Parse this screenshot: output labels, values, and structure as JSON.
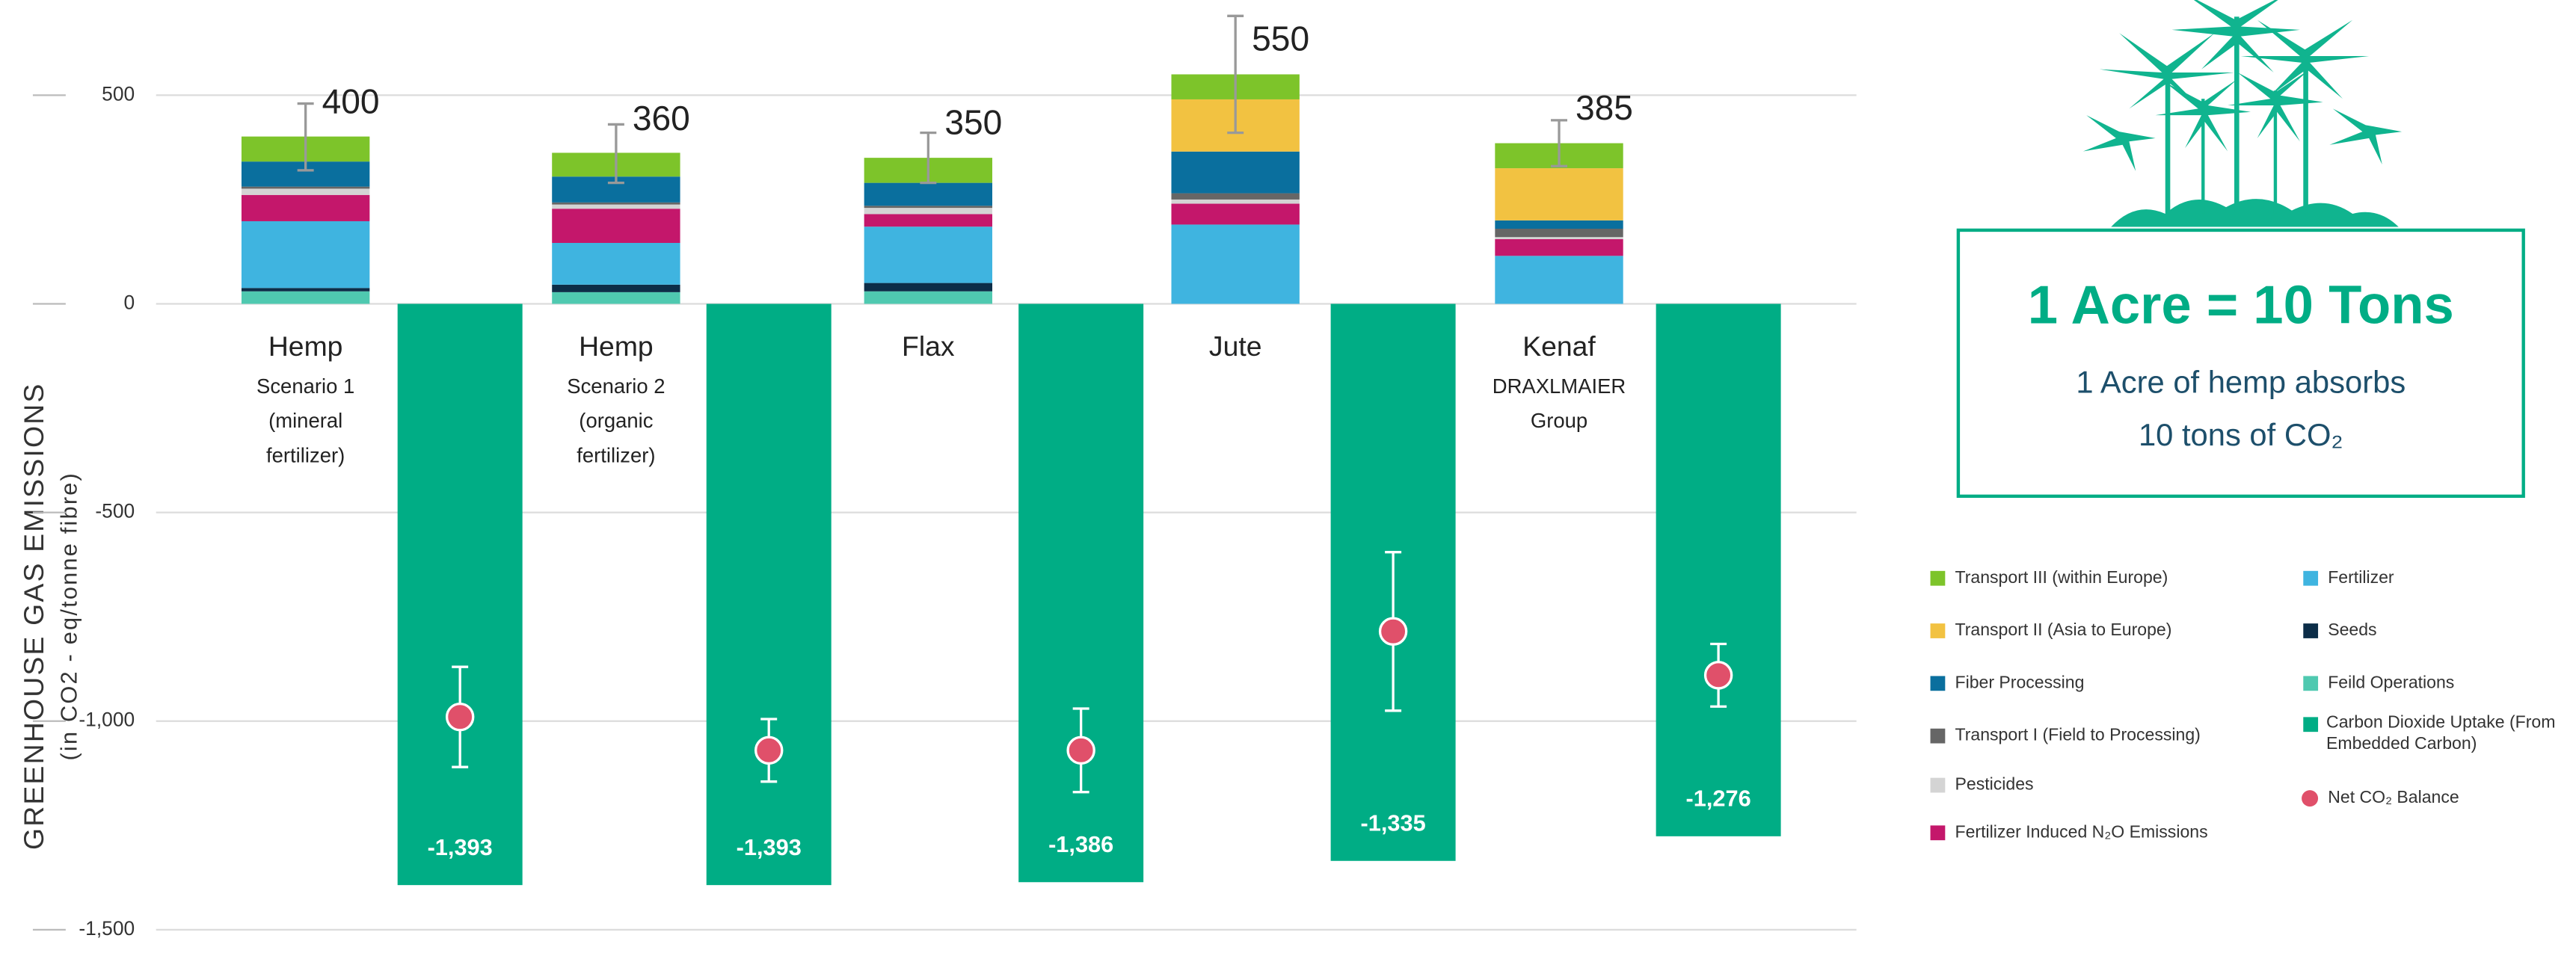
{
  "chart_data": {
    "type": "stacked_bar",
    "y_axis_title": "GREENHOUSE GAS EMISSIONS",
    "y_axis_subtitle": "(in CO2 - eq/tonne fibre)",
    "categories": [
      "Hemp",
      "Hemp",
      "Flax",
      "Jute",
      "Kenaf"
    ],
    "category_notes": [
      [
        "Scenario 1",
        "(mineral",
        "fertilizer)"
      ],
      [
        "Scenario 2",
        "(organic",
        "fertilizer)"
      ],
      [],
      [],
      [
        "DRAXLMAIER",
        "Group"
      ]
    ],
    "ylim": [
      -1500,
      700
    ],
    "yticks": [
      {
        "value": -1500,
        "label": "-1,500"
      },
      {
        "value": -1000,
        "label": "-1,000"
      },
      -500,
      0,
      500
    ],
    "grid": true,
    "series": [
      {
        "name": "Transport III (within Europe)",
        "color": "#7dc42a",
        "values": [
          60,
          57,
          60,
          60,
          60
        ]
      },
      {
        "name": "Transport II (Asia to Europe)",
        "color": "#f2c241",
        "values": [
          0,
          0,
          0,
          125,
          125
        ]
      },
      {
        "name": "Fiber Processing",
        "color": "#0a6f9e",
        "values": [
          60,
          62,
          55,
          100,
          20
        ]
      },
      {
        "name": "Transport I (Field to Processing)",
        "color": "#666666",
        "values": [
          5,
          5,
          5,
          15,
          20
        ]
      },
      {
        "name": "Pesticides",
        "color": "#d4d4d4",
        "values": [
          15,
          10,
          15,
          10,
          5
        ]
      },
      {
        "name": "Fertilizer Induced N₂O Emissions",
        "color": "#c4176b",
        "values": [
          63,
          82,
          30,
          50,
          40
        ]
      },
      {
        "name": "Fertilizer",
        "color": "#3fb4e0",
        "values": [
          160,
          100,
          135,
          190,
          115
        ]
      },
      {
        "name": "Seeds",
        "color": "#0c2d48",
        "values": [
          8,
          18,
          20,
          0,
          0
        ]
      },
      {
        "name": "Feild Operations",
        "color": "#4fc9b0",
        "values": [
          30,
          28,
          30,
          0,
          0
        ]
      }
    ],
    "totals": {
      "values": [
        400,
        360,
        350,
        550,
        385
      ],
      "errors": [
        80,
        70,
        60,
        140,
        55
      ],
      "error_color": "#999999"
    },
    "uptake": {
      "name": "Carbon Dioxide Uptake (From Embedded Carbon)",
      "color": "#00ad85",
      "values": [
        -1393,
        -1393,
        -1386,
        -1335,
        -1276
      ],
      "value_labels": [
        "-1,393",
        "-1,393",
        "-1,386",
        "-1,335",
        "-1,276"
      ]
    },
    "net_balance": {
      "name": "Net CO₂ Balance",
      "color": "#e0506a",
      "values": [
        -990,
        -1070,
        -1070,
        -785,
        -890
      ],
      "errors": [
        120,
        75,
        100,
        190,
        75
      ]
    },
    "callout": {
      "headline": "1 Acre = 10 Tons",
      "lines": [
        "1 Acre of hemp absorbs",
        "10 tons of CO₂"
      ]
    }
  }
}
